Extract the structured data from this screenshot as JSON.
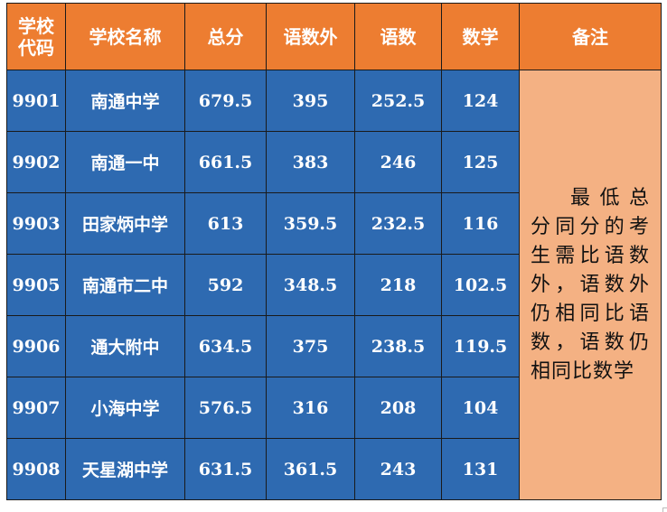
{
  "table": {
    "headers": {
      "code": "学校\n代码",
      "name": "学校名称",
      "total": "总分",
      "chinese_math_english": "语数外",
      "chinese_math": "语数",
      "math": "数学",
      "note": "备注"
    },
    "rows": [
      {
        "code": "9901",
        "name": "南通中学",
        "total": "679.5",
        "chinese_math_english": "395",
        "chinese_math": "252.5",
        "math": "124"
      },
      {
        "code": "9902",
        "name": "南通一中",
        "total": "661.5",
        "chinese_math_english": "383",
        "chinese_math": "246",
        "math": "125"
      },
      {
        "code": "9903",
        "name": "田家炳中学",
        "total": "613",
        "chinese_math_english": "359.5",
        "chinese_math": "232.5",
        "math": "116"
      },
      {
        "code": "9905",
        "name": "南通市二中",
        "total": "592",
        "chinese_math_english": "348.5",
        "chinese_math": "218",
        "math": "102.5"
      },
      {
        "code": "9906",
        "name": "通大附中",
        "total": "634.5",
        "chinese_math_english": "375",
        "chinese_math": "238.5",
        "math": "119.5"
      },
      {
        "code": "9907",
        "name": "小海中学",
        "total": "576.5",
        "chinese_math_english": "316",
        "chinese_math": "208",
        "math": "104"
      },
      {
        "code": "9908",
        "name": "天星湖中学",
        "total": "631.5",
        "chinese_math_english": "361.5",
        "chinese_math": "243",
        "math": "131"
      }
    ],
    "note": "最低总分同分的考生需比语数外，语数外仍相同比语数，语数仍相同比数学"
  },
  "colors": {
    "header_bg": "#ed7d31",
    "body_bg": "#2e6ab1",
    "note_bg": "#f4b183"
  }
}
